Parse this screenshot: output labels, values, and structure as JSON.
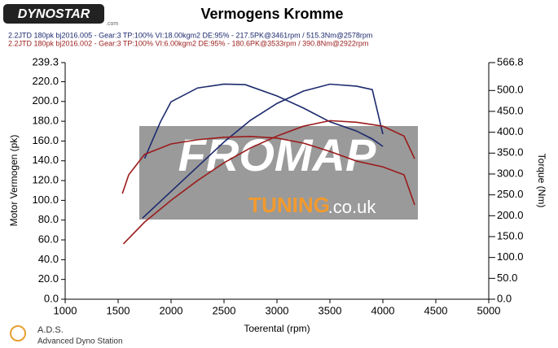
{
  "header": {
    "logo": "DYNOSTAR",
    "logo_sub": ".com"
  },
  "chart_data": {
    "type": "line",
    "title": "Vermogens Kromme",
    "x_label": "Toerental (rpm)",
    "y_label": "Motor Vermogen (pk)",
    "y2_label": "Torque (Nm)",
    "xlim": [
      1000,
      5000
    ],
    "xticks": [
      1000,
      1500,
      2000,
      2500,
      3000,
      3500,
      4000,
      4500,
      5000
    ],
    "ylim": [
      0,
      239.3
    ],
    "yticks": [
      {
        "value": 0,
        "label": "0.0"
      },
      {
        "value": 20,
        "label": "20.0"
      },
      {
        "value": 40,
        "label": "40.0"
      },
      {
        "value": 60,
        "label": "60.0"
      },
      {
        "value": 80,
        "label": "80.0"
      },
      {
        "value": 100,
        "label": "100.0"
      },
      {
        "value": 120,
        "label": "120.0"
      },
      {
        "value": 140,
        "label": "140.0"
      },
      {
        "value": 160,
        "label": "160.0"
      },
      {
        "value": 180,
        "label": "180.0"
      },
      {
        "value": 200,
        "label": "200.0"
      },
      {
        "value": 220,
        "label": "220.0"
      },
      239.3
    ],
    "y2lim": [
      0,
      566.8
    ],
    "y2ticks": [
      {
        "value": 0,
        "label": "0.0"
      },
      {
        "value": 50,
        "label": "50.0"
      },
      {
        "value": 100,
        "label": "100.0"
      },
      {
        "value": 150,
        "label": "150.0"
      },
      {
        "value": 200,
        "label": "200.0"
      },
      {
        "value": 250,
        "label": "250.0"
      },
      {
        "value": 300,
        "label": "300.0"
      },
      {
        "value": 350,
        "label": "350.0"
      },
      {
        "value": 400,
        "label": "400.0"
      },
      {
        "value": 450,
        "label": "450.0"
      },
      {
        "value": 500,
        "label": "500.0"
      },
      566.8
    ],
    "grid": false,
    "series": [
      {
        "name": "2.2JTD 180pk bj2016.005 - Gear:3 TP:100% VI:18.00kgm2 DE:95%   - 217.5PK@3461rpm / 515.3Nm@2578rpm",
        "color": "#1c2a6e",
        "x": [
          1730,
          2000,
          2250,
          2500,
          2750,
          3000,
          3250,
          3500,
          3750,
          3900,
          4000
        ],
        "values": [
          82,
          109,
          134,
          159,
          181,
          198,
          210.5,
          217.5,
          215.5,
          212,
          167
        ]
      },
      {
        "color": "#1c2a6e",
        "axis": "y2",
        "x": [
          1750,
          1900,
          2000,
          2250,
          2500,
          2700,
          3000,
          3250,
          3500,
          3750,
          3900,
          4000
        ],
        "values": [
          337,
          425,
          473,
          506,
          515.3,
          514,
          487,
          458,
          425,
          403,
          384,
          366
        ]
      },
      {
        "name": "2.2JTD 180pk bj2016.002 - Gear:3 TP:100% VI:6.00kgm2 DE:95%  - 180.6PK@3533rpm / 390.8Nm@2922rpm",
        "color": "#9b1c1c",
        "x": [
          1550,
          1750,
          2000,
          2250,
          2500,
          2750,
          3000,
          3250,
          3500,
          3750,
          4000,
          4200,
          4300
        ],
        "values": [
          56,
          78,
          100,
          120,
          138,
          153,
          165,
          175,
          180.6,
          179,
          175,
          165,
          142
        ]
      },
      {
        "color": "#9b1c1c",
        "axis": "y2",
        "x": [
          1540,
          1600,
          1750,
          2000,
          2250,
          2500,
          2750,
          3000,
          3250,
          3500,
          3750,
          4000,
          4200,
          4300
        ],
        "values": [
          253,
          298,
          347,
          372,
          382,
          388,
          390,
          386,
          374,
          354,
          331,
          317,
          298,
          226
        ]
      }
    ]
  },
  "watermark": {
    "main": "FROMAP",
    "sub": "TUNING",
    "domain": ".co.uk"
  },
  "footer": {
    "brand": "A.D.S.",
    "subtitle": "Advanced Dyno Station"
  }
}
